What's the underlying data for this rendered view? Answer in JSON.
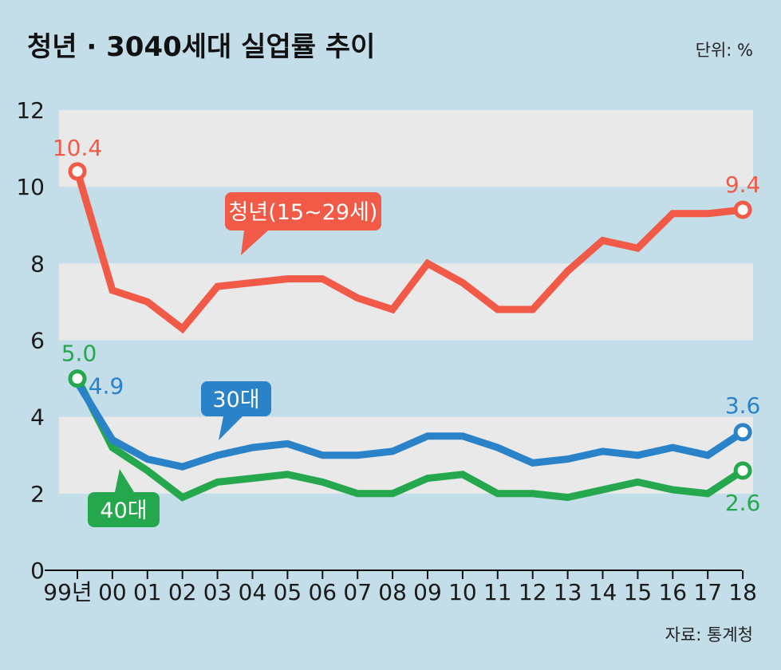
{
  "header": {
    "title": "청년 · 3040세대 실업률 추이",
    "unit": "단위: %"
  },
  "footer": {
    "source": "자료: 통계청"
  },
  "chart_data": {
    "type": "line",
    "title": "청년 · 3040세대 실업률 추이",
    "ylabel": "단위: %",
    "ylim": [
      0,
      12
    ],
    "yticks": [
      0,
      2,
      4,
      6,
      8,
      10,
      12
    ],
    "categories": [
      "99년",
      "00",
      "01",
      "02",
      "03",
      "04",
      "05",
      "06",
      "07",
      "08",
      "09",
      "10",
      "11",
      "12",
      "13",
      "14",
      "15",
      "16",
      "17",
      "18"
    ],
    "series": [
      {
        "name": "청년(15~29세)",
        "color": "#f05a46",
        "values": [
          10.4,
          7.3,
          7.0,
          6.3,
          7.4,
          7.5,
          7.6,
          7.6,
          7.1,
          6.8,
          8.0,
          7.5,
          6.8,
          6.8,
          7.8,
          8.6,
          8.4,
          9.3,
          9.3,
          9.4
        ]
      },
      {
        "name": "30대",
        "color": "#2a82c9",
        "values": [
          4.9,
          3.4,
          2.9,
          2.7,
          3.0,
          3.2,
          3.3,
          3.0,
          3.0,
          3.1,
          3.5,
          3.5,
          3.2,
          2.8,
          2.9,
          3.1,
          3.0,
          3.2,
          3.0,
          3.6
        ]
      },
      {
        "name": "40대",
        "color": "#25a84d",
        "values": [
          5.0,
          3.2,
          2.6,
          1.9,
          2.3,
          2.4,
          2.5,
          2.3,
          2.0,
          2.0,
          2.4,
          2.5,
          2.0,
          2.0,
          1.9,
          2.1,
          2.3,
          2.1,
          2.0,
          2.6
        ]
      }
    ],
    "data_labels": [
      {
        "series": 0,
        "index": 0,
        "text": "10.4"
      },
      {
        "series": 0,
        "index": 19,
        "text": "9.4"
      },
      {
        "series": 1,
        "index": 0,
        "text": "4.9"
      },
      {
        "series": 1,
        "index": 19,
        "text": "3.6"
      },
      {
        "series": 2,
        "index": 0,
        "text": "5.0"
      },
      {
        "series": 2,
        "index": 19,
        "text": "2.6"
      }
    ],
    "bands": [
      "grey",
      "none"
    ],
    "grid": false
  }
}
